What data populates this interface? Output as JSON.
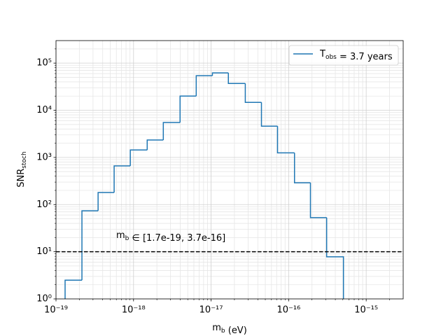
{
  "chart_data": {
    "type": "histogram",
    "xlabel": "m_b (eV)",
    "ylabel": "SNR_stoch",
    "annotation": "m_b ∈ [1.7e-19, 3.7e-16]",
    "log_x": true,
    "log_y": true,
    "grid": true,
    "minor_grid": true,
    "legend": "upper right",
    "threshold": 10,
    "threshold_color": "#000000",
    "xlim": [
      1e-19,
      3e-15
    ],
    "ylim": [
      1,
      300000
    ],
    "xticks": [
      {
        "value": 1e-19,
        "label": "10⁻¹⁹"
      },
      {
        "value": 1e-18,
        "label": "10⁻¹⁸"
      },
      {
        "value": 1e-17,
        "label": "10⁻¹⁷"
      },
      {
        "value": 1e-16,
        "label": "10⁻¹⁶"
      },
      {
        "value": 1e-15,
        "label": "10⁻¹⁵"
      }
    ],
    "yticks": [
      {
        "value": 1,
        "label": "10⁰"
      },
      {
        "value": 10,
        "label": "10¹"
      },
      {
        "value": 100,
        "label": "10²"
      },
      {
        "value": 1000,
        "label": "10³"
      },
      {
        "value": 10000,
        "label": "10⁴"
      },
      {
        "value": 100000,
        "label": "10⁵"
      }
    ],
    "series": [
      {
        "name": "T_obs = 3.7 years",
        "color": "#1f77b4",
        "bins": [
          1.31e-19,
          2.16e-19,
          3.49e-19,
          5.62e-19,
          9.08e-19,
          1.5e-18,
          2.42e-18,
          3.98e-18,
          6.43e-18,
          1.04e-17,
          1.67e-17,
          2.76e-17,
          4.46e-17,
          7.19e-17,
          1.19e-16,
          1.91e-16,
          3.09e-16,
          5.09e-16
        ],
        "values": [
          2.5,
          74,
          180,
          660,
          1440,
          2340,
          5500,
          20000,
          54000,
          62000,
          37000,
          14700,
          4600,
          1250,
          290,
          53,
          7.8
        ]
      }
    ]
  }
}
